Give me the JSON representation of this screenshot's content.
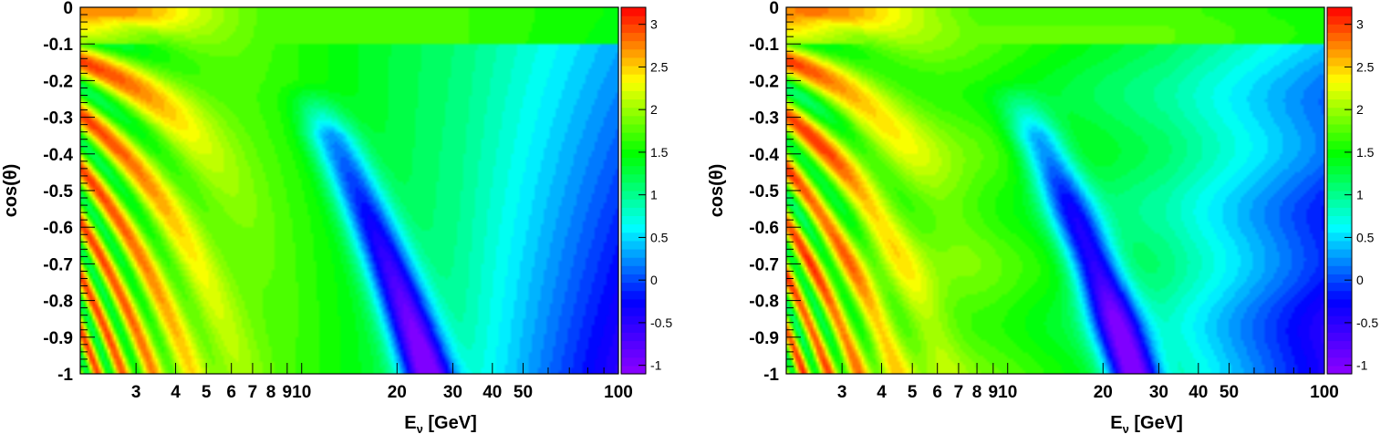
{
  "chart_data": [
    {
      "type": "heatmap",
      "title": "",
      "xlabel": "E",
      "xlabel_sub": "ν",
      "xlabel_unit": " [GeV]",
      "ylabel": "cos(θ)",
      "x_scale": "log",
      "xlim": [
        2,
        100
      ],
      "ylim": [
        -1,
        0
      ],
      "x_ticks": [
        3,
        4,
        5,
        6,
        7,
        8,
        9,
        10,
        20,
        30,
        40,
        50,
        100
      ],
      "x_tick_labels": [
        "3",
        "4",
        "5",
        "6",
        "7",
        "8",
        "9",
        "10",
        "20",
        "30",
        "40",
        "50",
        "100"
      ],
      "y_ticks": [
        0,
        -0.1,
        -0.2,
        -0.3,
        -0.4,
        -0.5,
        -0.6,
        -0.7,
        -0.8,
        -0.9,
        -1
      ],
      "y_tick_labels": [
        "0",
        "-0.1",
        "-0.2",
        "-0.3",
        "-0.4",
        "-0.5",
        "-0.6",
        "-0.7",
        "-0.8",
        "-0.9",
        "-1"
      ],
      "colorbar": {
        "range": [
          -1.1,
          3.2
        ],
        "ticks": [
          3,
          2.5,
          2,
          1.5,
          1,
          0.5,
          0,
          -0.5,
          -1
        ],
        "tick_labels": [
          "3",
          "2.5",
          "2",
          "1.5",
          "1",
          "0.5",
          "0",
          "-0.5",
          "-1"
        ],
        "colors": [
          "#8f00ff",
          "#0000ff",
          "#00ffff",
          "#00ff00",
          "#ffff00",
          "#ff0000"
        ]
      },
      "features": {
        "blue_valley": [
          {
            "x": 12,
            "y": -0.45,
            "z": 0.4
          },
          {
            "x": 16,
            "y": -0.62,
            "z": -0.3
          },
          {
            "x": 20,
            "y": -0.8,
            "z": -0.6
          },
          {
            "x": 24,
            "y": -1,
            "z": -1
          }
        ],
        "high_region": {
          "x_max": 6,
          "z": 2.9
        },
        "low_energy_corner": {
          "x": 100,
          "y": -1,
          "z": -0.3
        }
      }
    },
    {
      "type": "heatmap",
      "title": "",
      "xlabel": "E",
      "xlabel_sub": "ν",
      "xlabel_unit": " [GeV]",
      "ylabel": "cos(θ)",
      "x_scale": "log",
      "xlim": [
        2,
        100
      ],
      "ylim": [
        -1,
        0
      ],
      "x_ticks": [
        3,
        4,
        5,
        6,
        7,
        8,
        9,
        10,
        20,
        30,
        40,
        50,
        100
      ],
      "x_tick_labels": [
        "3",
        "4",
        "5",
        "6",
        "7",
        "8",
        "9",
        "10",
        "20",
        "30",
        "40",
        "50",
        "100"
      ],
      "y_ticks": [
        0,
        -0.1,
        -0.2,
        -0.3,
        -0.4,
        -0.5,
        -0.6,
        -0.7,
        -0.8,
        -0.9,
        -1
      ],
      "y_tick_labels": [
        "0",
        "-0.1",
        "-0.2",
        "-0.3",
        "-0.4",
        "-0.5",
        "-0.6",
        "-0.7",
        "-0.8",
        "-0.9",
        "-1"
      ],
      "colorbar": {
        "range": [
          -1.1,
          3.2
        ],
        "ticks": [
          3,
          2.5,
          2,
          1.5,
          1,
          0.5,
          0,
          -0.5,
          -1
        ],
        "tick_labels": [
          "3",
          "2.5",
          "2",
          "1.5",
          "1",
          "0.5",
          "0",
          "-0.5",
          "-1"
        ],
        "colors": [
          "#8f00ff",
          "#0000ff",
          "#00ffff",
          "#00ff00",
          "#ffff00",
          "#ff0000"
        ]
      },
      "features": {
        "blue_valley": [
          {
            "x": 12,
            "y": -0.45,
            "z": 0.4
          },
          {
            "x": 16,
            "y": -0.62,
            "z": -0.3
          },
          {
            "x": 20,
            "y": -0.8,
            "z": -0.6
          },
          {
            "x": 24,
            "y": -1,
            "z": -1
          }
        ],
        "high_region": {
          "x_max": 6,
          "z": 2.9
        },
        "low_energy_corner": {
          "x": 100,
          "y": -1,
          "z": -0.3
        }
      }
    }
  ]
}
